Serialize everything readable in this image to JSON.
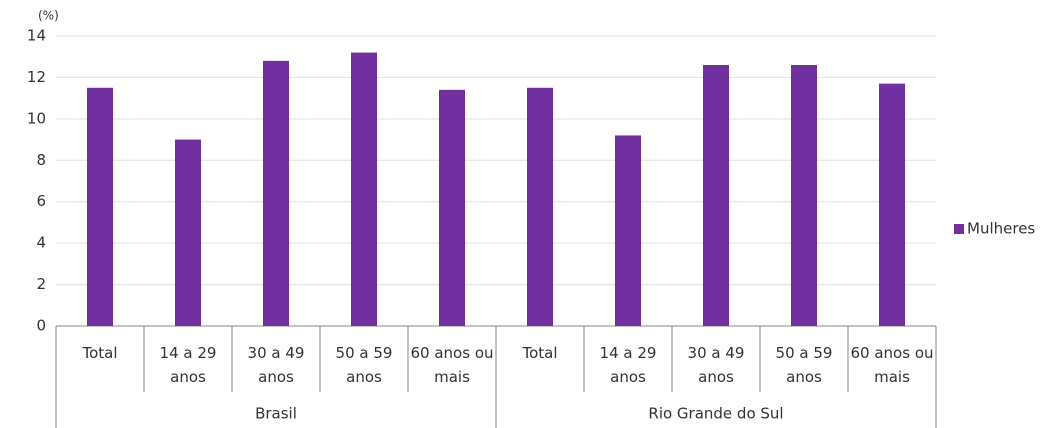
{
  "chart_data": {
    "type": "bar",
    "y_label": "(%)",
    "groups": [
      {
        "name": "Brasil",
        "categories": [
          "Total",
          "14 a 29 anos",
          "30 a 49 anos",
          "50 a 59 anos",
          "60 anos ou mais"
        ]
      },
      {
        "name": "Rio Grande do Sul",
        "categories": [
          "Total",
          "14 a 29 anos",
          "30 a 49 anos",
          "50 a 59 anos",
          "60 anos ou mais"
        ]
      }
    ],
    "series": [
      {
        "name": "Mulheres",
        "color": "#7030a0",
        "values": [
          11.5,
          9.0,
          12.8,
          13.2,
          11.4,
          11.5,
          9.2,
          12.6,
          12.6,
          11.7
        ]
      }
    ],
    "ylim": [
      0,
      14
    ],
    "yticks": [
      0,
      2,
      4,
      6,
      8,
      10,
      12,
      14
    ],
    "grid": true,
    "legend": "right"
  }
}
